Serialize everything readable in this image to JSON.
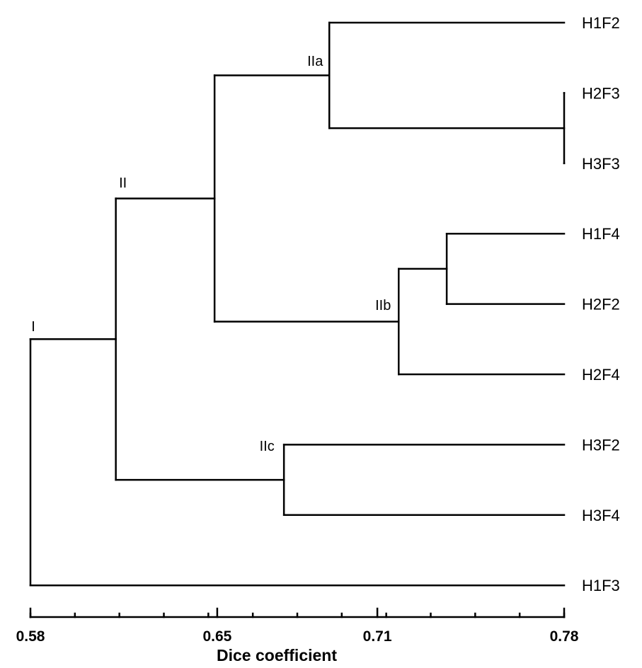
{
  "dendrogram": {
    "leaves": [
      "H1F2",
      "H2F3",
      "H3F3",
      "H1F4",
      "H2F2",
      "H2F4",
      "H3F2",
      "H3F4",
      "H1F3"
    ],
    "nodes": [
      {
        "id": "n_h2f3_h3f3",
        "label": "",
        "children": [
          "H2F3",
          "H3F3"
        ],
        "height": 0.78
      },
      {
        "id": "IIa",
        "label": "IIa",
        "children": [
          "H1F2",
          "n_h2f3_h3f3"
        ],
        "height": 0.692
      },
      {
        "id": "n_h1f4_h2f2",
        "label": "",
        "children": [
          "H1F4",
          "H2F2"
        ],
        "height": 0.736
      },
      {
        "id": "IIb",
        "label": "IIb",
        "children": [
          "n_h1f4_h2f2",
          "H2F4"
        ],
        "height": 0.718
      },
      {
        "id": "n_iia_iib",
        "label": "",
        "children": [
          "IIa",
          "IIb"
        ],
        "height": 0.649
      },
      {
        "id": "IIc",
        "label": "IIc",
        "children": [
          "H3F2",
          "H3F4"
        ],
        "height": 0.675
      },
      {
        "id": "II",
        "label": "II",
        "children": [
          "n_iia_iib",
          "IIc"
        ],
        "height": 0.612
      },
      {
        "id": "I",
        "label": "I",
        "children": [
          "II",
          "H1F3"
        ],
        "height": 0.58
      }
    ]
  },
  "axis": {
    "title": "Dice coefficient",
    "ticks": [
      "0.58",
      "0.65",
      "0.71",
      "0.78"
    ],
    "tick_values": [
      0.58,
      0.65,
      0.71,
      0.78
    ],
    "range": [
      0.58,
      0.78
    ]
  }
}
